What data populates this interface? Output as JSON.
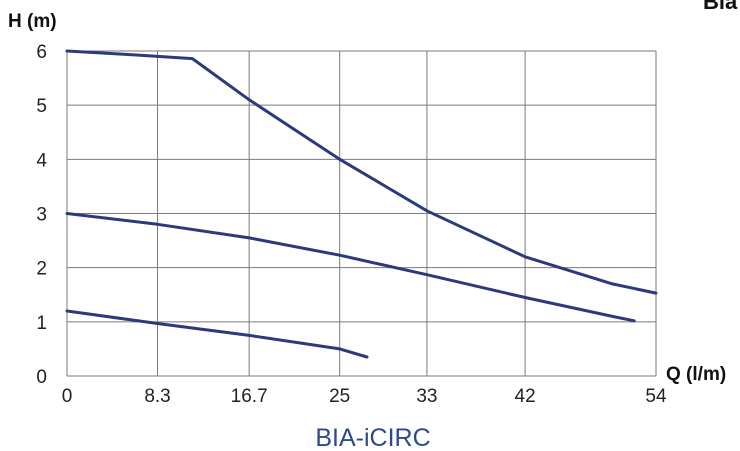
{
  "chart_data": {
    "type": "line",
    "title": "",
    "caption": "BIA-iCIRC",
    "corner_text": "Bia",
    "xlabel": "Q (l/m)",
    "ylabel": "H (m)",
    "x_ticks": [
      0,
      8.3,
      16.7,
      25,
      33,
      42,
      54
    ],
    "x_tick_labels": [
      "0",
      "8.3",
      "16.7",
      "25",
      "33",
      "42",
      "54"
    ],
    "y_ticks": [
      0,
      1,
      2,
      3,
      4,
      5,
      6
    ],
    "y_tick_labels": [
      "0",
      "1",
      "2",
      "3",
      "4",
      "5",
      "6"
    ],
    "xlim": [
      0,
      54
    ],
    "ylim": [
      0,
      6
    ],
    "grid": true,
    "line_color": "#2b3a7a",
    "series": [
      {
        "x": [
          0,
          6,
          11.5,
          16.7,
          25,
          33,
          42,
          50,
          54
        ],
        "y": [
          6.0,
          5.93,
          5.86,
          5.1,
          4.0,
          3.05,
          2.2,
          1.7,
          1.53
        ]
      },
      {
        "x": [
          0,
          8.3,
          16.7,
          25,
          33,
          42,
          50,
          52
        ],
        "y": [
          3.0,
          2.8,
          2.55,
          2.23,
          1.87,
          1.45,
          1.1,
          1.02
        ]
      },
      {
        "x": [
          0,
          8.3,
          16.7,
          25,
          27.5
        ],
        "y": [
          1.2,
          0.97,
          0.75,
          0.5,
          0.35
        ]
      }
    ]
  }
}
